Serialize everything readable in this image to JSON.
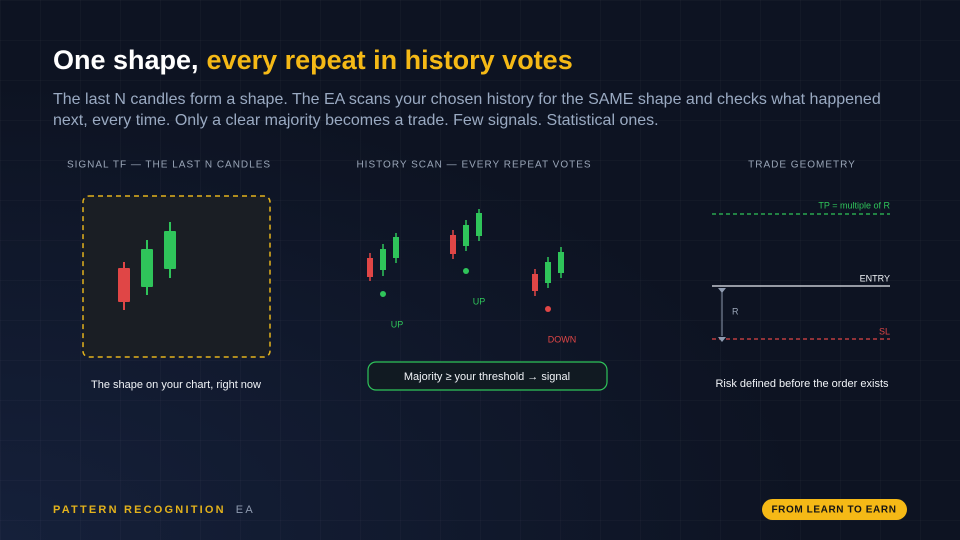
{
  "title": {
    "lead": "One shape,",
    "highlight": "every repeat in history votes"
  },
  "subtitle": "The last N candles form a shape. The EA scans your chosen history for the SAME shape and checks what happened next, every time. Only a clear majority becomes a trade. Few signals. Statistical ones.",
  "panels": [
    {
      "heading": "SIGNAL TF — THE LAST N CANDLES",
      "caption": "The shape on your chart, right now"
    },
    {
      "heading": "HISTORY SCAN — EVERY REPEAT VOTES",
      "votes": [
        "UP",
        "UP",
        "DOWN"
      ],
      "result": "Majority ≥ your threshold → signal"
    },
    {
      "heading": "TRADE GEOMETRY",
      "tp": "TP = multiple of R",
      "entry": "ENTRY",
      "risk": "R",
      "sl": "SL",
      "caption": "Risk defined before the order exists"
    }
  ],
  "footer": {
    "brand": "PATTERN RECOGNITION",
    "suffix": "EA",
    "badge": "FROM LEARN TO EARN"
  }
}
